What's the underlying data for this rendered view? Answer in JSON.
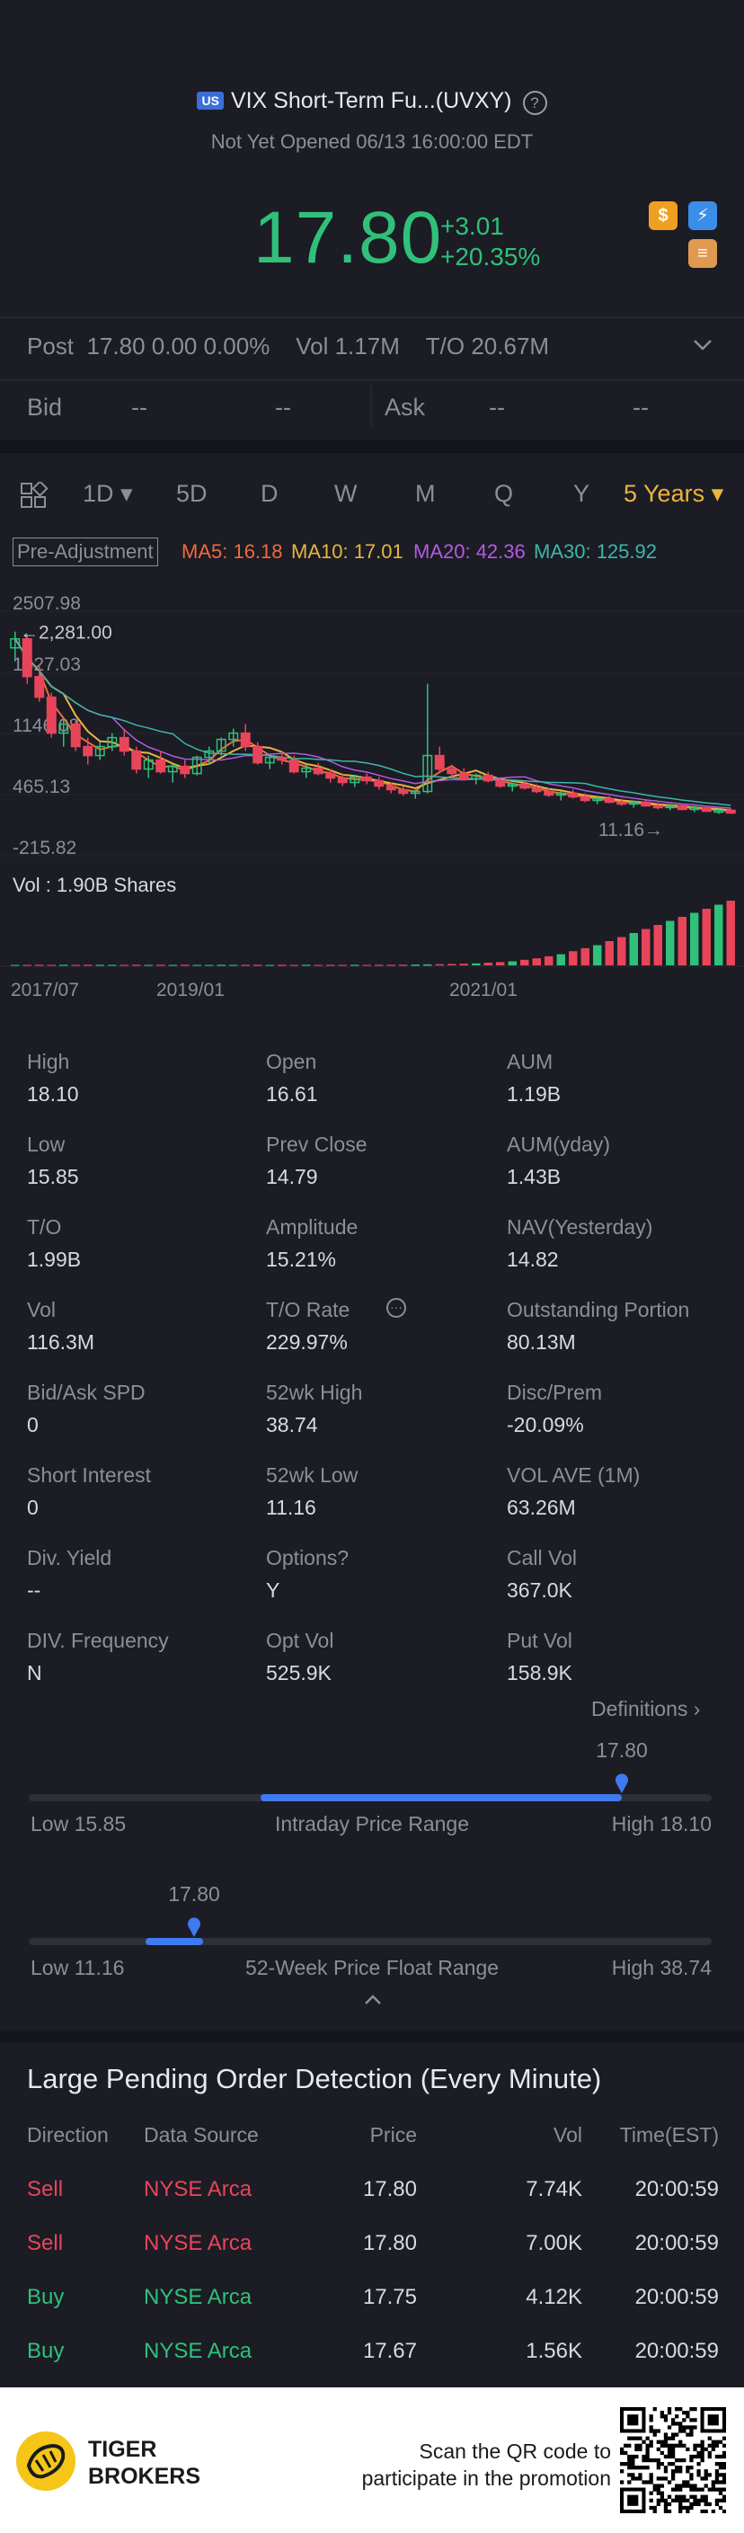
{
  "header": {
    "badge": "US",
    "title": "VIX Short-Term Fu...(UVXY)",
    "help": "?",
    "status": "Not Yet Opened 06/13 16:00:00 EDT",
    "price": "17.80",
    "change": "+3.01",
    "change_pct": "+20.35%",
    "icons": [
      "dollar-icon",
      "lightning-icon",
      "stack-icon"
    ]
  },
  "post": {
    "label": "Post",
    "value": "17.80 0.00 0.00%",
    "vol": "Vol 1.17M",
    "to": "T/O 20.67M"
  },
  "quote": {
    "bid_label": "Bid",
    "bid1": "--",
    "bid2": "--",
    "ask_label": "Ask",
    "ask1": "--",
    "ask2": "--"
  },
  "tabs": [
    {
      "label": "1D ▾",
      "active": false
    },
    {
      "label": "5D",
      "active": false
    },
    {
      "label": "D",
      "active": false
    },
    {
      "label": "W",
      "active": false
    },
    {
      "label": "M",
      "active": false
    },
    {
      "label": "Q",
      "active": false
    },
    {
      "label": "Y",
      "active": false
    },
    {
      "label": "5 Years ▾",
      "active": true
    }
  ],
  "indicators": {
    "pre_adjustment": "Pre-Adjustment",
    "ma5": "MA5: 16.18",
    "ma10": "MA10: 17.01",
    "ma20": "MA20: 42.36",
    "ma30": "MA30: 125.92",
    "colors": {
      "ma5": "#f06a3a",
      "ma10": "#e9b441",
      "ma20": "#b25be0",
      "ma30": "#3bb8a8"
    }
  },
  "chart_data": {
    "type": "candlestick",
    "y_ticks": [
      "2507.98",
      "1827.03",
      "1146.08",
      "465.13",
      "-215.82"
    ],
    "max_marker": "2,281.00",
    "min_marker": "11.16",
    "volume_label": "Vol  : 1.90B Shares",
    "x_ticks": [
      "2017/07",
      "2019/01",
      "2021/01"
    ],
    "candles": [
      [
        2100,
        2281,
        1950,
        2200
      ],
      [
        2200,
        2250,
        1700,
        1780
      ],
      [
        1780,
        1900,
        1500,
        1550
      ],
      [
        1550,
        1600,
        1100,
        1150
      ],
      [
        1150,
        1300,
        1000,
        1250
      ],
      [
        1250,
        1300,
        950,
        1000
      ],
      [
        1000,
        1100,
        800,
        900
      ],
      [
        900,
        1050,
        850,
        1000
      ],
      [
        1000,
        1150,
        950,
        1100
      ],
      [
        1100,
        1200,
        900,
        950
      ],
      [
        950,
        1000,
        700,
        750
      ],
      [
        750,
        900,
        650,
        850
      ],
      [
        850,
        950,
        700,
        720
      ],
      [
        720,
        800,
        600,
        780
      ],
      [
        780,
        850,
        650,
        700
      ],
      [
        700,
        900,
        680,
        880
      ],
      [
        880,
        1000,
        800,
        950
      ],
      [
        950,
        1100,
        900,
        1080
      ],
      [
        1080,
        1200,
        1000,
        1150
      ],
      [
        1150,
        1250,
        950,
        1000
      ],
      [
        1000,
        1050,
        800,
        820
      ],
      [
        820,
        900,
        750,
        880
      ],
      [
        880,
        950,
        800,
        850
      ],
      [
        850,
        900,
        700,
        720
      ],
      [
        720,
        800,
        650,
        760
      ],
      [
        760,
        820,
        680,
        700
      ],
      [
        700,
        750,
        600,
        650
      ],
      [
        650,
        700,
        560,
        600
      ],
      [
        600,
        680,
        550,
        660
      ],
      [
        660,
        700,
        580,
        620
      ],
      [
        620,
        660,
        520,
        560
      ],
      [
        560,
        600,
        480,
        520
      ],
      [
        520,
        560,
        450,
        480
      ],
      [
        480,
        520,
        420,
        500
      ],
      [
        500,
        1700,
        480,
        900
      ],
      [
        900,
        1000,
        700,
        750
      ],
      [
        750,
        800,
        650,
        700
      ],
      [
        700,
        760,
        620,
        640
      ],
      [
        640,
        700,
        580,
        680
      ],
      [
        680,
        720,
        600,
        620
      ],
      [
        620,
        660,
        540,
        560
      ],
      [
        560,
        600,
        500,
        580
      ],
      [
        580,
        620,
        520,
        540
      ],
      [
        540,
        580,
        480,
        500
      ],
      [
        500,
        540,
        440,
        460
      ],
      [
        460,
        500,
        400,
        480
      ],
      [
        480,
        520,
        420,
        440
      ],
      [
        440,
        480,
        380,
        400
      ],
      [
        400,
        440,
        360,
        420
      ],
      [
        420,
        450,
        370,
        380
      ],
      [
        380,
        420,
        340,
        360
      ],
      [
        360,
        400,
        320,
        380
      ],
      [
        380,
        400,
        330,
        340
      ],
      [
        340,
        380,
        300,
        320
      ],
      [
        320,
        360,
        290,
        340
      ],
      [
        340,
        360,
        290,
        300
      ],
      [
        300,
        340,
        270,
        320
      ],
      [
        320,
        340,
        270,
        280
      ],
      [
        280,
        310,
        250,
        290
      ],
      [
        290,
        310,
        250,
        260
      ]
    ],
    "volumes": [
      5,
      5,
      6,
      5,
      6,
      5,
      6,
      6,
      5,
      5,
      6,
      5,
      6,
      5,
      6,
      5,
      5,
      6,
      5,
      6,
      6,
      5,
      6,
      5,
      6,
      5,
      6,
      5,
      6,
      5,
      6,
      6,
      7,
      8,
      10,
      12,
      14,
      16,
      20,
      26,
      32,
      40,
      55,
      70,
      90,
      110,
      140,
      170,
      200,
      240,
      280,
      320,
      360,
      400,
      440,
      480,
      520,
      560,
      600,
      640
    ],
    "ylim": [
      -215.82,
      2507.98
    ]
  },
  "stats": [
    [
      {
        "label": "High",
        "value": "18.10"
      },
      {
        "label": "Open",
        "value": "16.61"
      },
      {
        "label": "AUM",
        "value": "1.19B"
      }
    ],
    [
      {
        "label": "Low",
        "value": "15.85"
      },
      {
        "label": "Prev Close",
        "value": "14.79"
      },
      {
        "label": "AUM(yday)",
        "value": "1.43B"
      }
    ],
    [
      {
        "label": "T/O",
        "value": "1.99B"
      },
      {
        "label": "Amplitude",
        "value": "15.21%"
      },
      {
        "label": "NAV(Yesterday)",
        "value": "14.82"
      }
    ],
    [
      {
        "label": "Vol",
        "value": "116.3M"
      },
      {
        "label": "T/O Rate",
        "value": "229.97%"
      },
      {
        "label": "Outstanding Portion",
        "value": "80.13M"
      }
    ],
    [
      {
        "label": "Bid/Ask SPD",
        "value": "0"
      },
      {
        "label": "52wk High",
        "value": "38.74"
      },
      {
        "label": "Disc/Prem",
        "value": "-20.09%"
      }
    ],
    [
      {
        "label": "Short Interest",
        "value": "0"
      },
      {
        "label": "52wk Low",
        "value": "11.16"
      },
      {
        "label": "VOL AVE (1M)",
        "value": "63.26M"
      }
    ],
    [
      {
        "label": "Div. Yield",
        "value": "--"
      },
      {
        "label": "Options?",
        "value": "Y"
      },
      {
        "label": "Call Vol",
        "value": "367.0K"
      }
    ],
    [
      {
        "label": "DIV. Frequency",
        "value": "N"
      },
      {
        "label": "Opt Vol",
        "value": "525.9K"
      },
      {
        "label": "Put Vol",
        "value": "158.9K"
      }
    ]
  ],
  "definitions": "Definitions",
  "intraday": {
    "marker": "17.80",
    "low": "Low 15.85",
    "title": "Intraday Price Range",
    "high": "High 18.10",
    "fill_start": 0.0,
    "fill_end": 0.87
  },
  "week52": {
    "marker": "17.80",
    "low": "Low 11.16",
    "title": "52-Week Price Float Range",
    "high": "High 38.74",
    "fill_start": 0.0,
    "fill_end": 0.24
  },
  "pending": {
    "title": "Large Pending Order Detection (Every Minute)",
    "headers": [
      "Direction",
      "Data Source",
      "Price",
      "Vol",
      "Time(EST)"
    ],
    "rows": [
      {
        "direction": "Sell",
        "source": "NYSE Arca",
        "price": "17.80",
        "vol": "7.74K",
        "time": "20:00:59",
        "side": "sell"
      },
      {
        "direction": "Sell",
        "source": "NYSE Arca",
        "price": "17.80",
        "vol": "7.00K",
        "time": "20:00:59",
        "side": "sell"
      },
      {
        "direction": "Buy",
        "source": "NYSE Arca",
        "price": "17.75",
        "vol": "4.12K",
        "time": "20:00:59",
        "side": "buy"
      },
      {
        "direction": "Buy",
        "source": "NYSE Arca",
        "price": "17.67",
        "vol": "1.56K",
        "time": "20:00:59",
        "side": "buy"
      }
    ]
  },
  "footer": {
    "brand_line1": "TIGER",
    "brand_line2": "BROKERS",
    "qr_line1": "Scan the QR code to",
    "qr_line2": "participate in the promotion"
  }
}
